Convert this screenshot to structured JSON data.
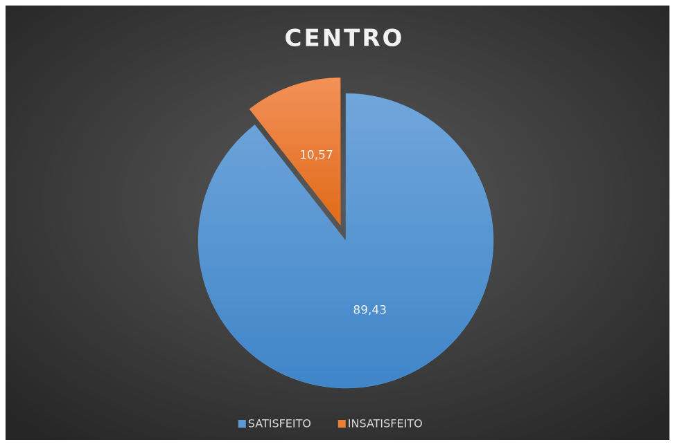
{
  "chart_data": {
    "type": "pie",
    "title": "CENTRO",
    "categories": [
      "SATISFEITO",
      "INSATISFEITO"
    ],
    "values": [
      89.43,
      10.57
    ],
    "value_labels": [
      "89,43",
      "10,57"
    ],
    "colors": [
      "#5b9bd5",
      "#ed7d31"
    ],
    "exploded": [
      false,
      true
    ],
    "legend": "bottom"
  }
}
